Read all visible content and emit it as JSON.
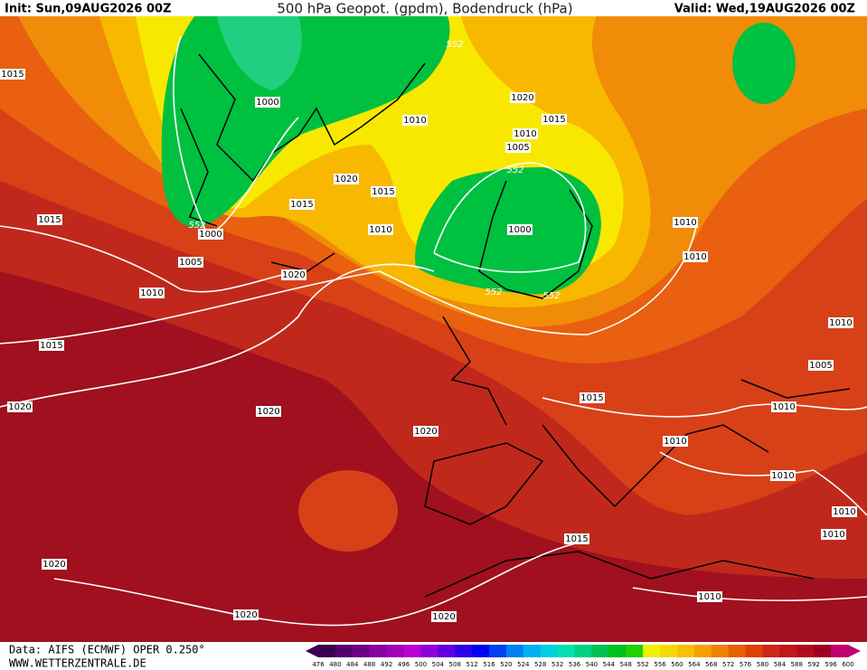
{
  "header": {
    "init": "Init: Sun,09AUG2026 00Z",
    "title": "500 hPa Geopot. (gpdm), Bodendruck (hPa)",
    "valid": "Valid: Wed,19AUG2026 00Z"
  },
  "footer": {
    "data": "Data: AIFS (ECMWF) OPER 0.250°",
    "site": "WWW.WETTERZENTRALE.DE"
  },
  "color_scale": {
    "labels": [
      476,
      480,
      484,
      488,
      492,
      496,
      500,
      504,
      508,
      512,
      516,
      520,
      524,
      528,
      532,
      536,
      540,
      544,
      548,
      552,
      556,
      560,
      564,
      568,
      572,
      576,
      580,
      584,
      588,
      592,
      596,
      600
    ],
    "colors": [
      "#3c0050",
      "#55006e",
      "#6e0088",
      "#8800a0",
      "#a000b8",
      "#b800d0",
      "#9000d8",
      "#6000e0",
      "#3000e8",
      "#0000f0",
      "#0040f0",
      "#0080f0",
      "#00b0f0",
      "#00d0e0",
      "#00e0b0",
      "#00d080",
      "#00c050",
      "#00c020",
      "#20d000",
      "#f0f000",
      "#f8d800",
      "#f8c000",
      "#f8a000",
      "#f08000",
      "#e86000",
      "#e04000",
      "#d02818",
      "#c01818",
      "#b00c20",
      "#a00020",
      "#c00070"
    ]
  },
  "isobar_labels": [
    "1015",
    "1000",
    "1020",
    "1010",
    "1015",
    "1010",
    "1005",
    "552",
    "1020",
    "1015",
    "1015",
    "1015",
    "552",
    "1000",
    "1010",
    "1000",
    "1010",
    "1010",
    "1005",
    "1020",
    "1010",
    "552",
    "552",
    "1010",
    "1015",
    "1005",
    "1015",
    "1020",
    "1020",
    "1010",
    "1020",
    "1010",
    "1010",
    "1010",
    "1010",
    "1015",
    "1020",
    "1010",
    "1020",
    "1020",
    "552"
  ]
}
